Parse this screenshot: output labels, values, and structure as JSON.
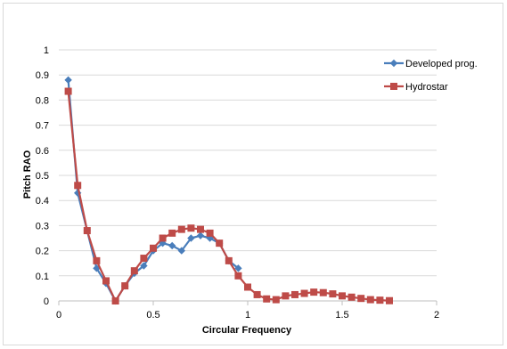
{
  "chart_data": {
    "type": "line",
    "title": "",
    "xlabel": "Circular Frequency",
    "ylabel": "Pitch  RAO",
    "xlim": [
      0,
      2
    ],
    "ylim": [
      0,
      1
    ],
    "xticks": [
      0,
      0.5,
      1,
      1.5,
      2
    ],
    "xtick_labels": [
      "0",
      "0.5",
      "1",
      "1.5",
      "2"
    ],
    "yticks": [
      0,
      0.1,
      0.2,
      0.3,
      0.4,
      0.5,
      0.6,
      0.7,
      0.8,
      0.9,
      1
    ],
    "ytick_labels": [
      "0",
      "0.1",
      "0.2",
      "0.3",
      "0.4",
      "0.5",
      "0.6",
      "0.7",
      "0.8",
      "0.9",
      "1"
    ],
    "grid": true,
    "legend_position": "top-right",
    "series": [
      {
        "name": "Developed prog.",
        "color": "#4a7ebb",
        "marker": "diamond",
        "x": [
          0.05,
          0.1,
          0.15,
          0.2,
          0.25,
          0.3,
          0.35,
          0.4,
          0.45,
          0.5,
          0.55,
          0.6,
          0.65,
          0.7,
          0.75,
          0.8,
          0.85,
          0.9,
          0.95
        ],
        "y": [
          0.88,
          0.43,
          0.28,
          0.13,
          0.07,
          0.0,
          0.06,
          0.11,
          0.14,
          0.2,
          0.23,
          0.22,
          0.2,
          0.25,
          0.26,
          0.25,
          0.23,
          0.16,
          0.13
        ]
      },
      {
        "name": "Hydrostar",
        "color": "#be4b48",
        "marker": "square",
        "x": [
          0.05,
          0.1,
          0.15,
          0.2,
          0.25,
          0.3,
          0.35,
          0.4,
          0.45,
          0.5,
          0.55,
          0.6,
          0.65,
          0.7,
          0.75,
          0.8,
          0.85,
          0.9,
          0.95,
          1.0,
          1.05,
          1.1,
          1.15,
          1.2,
          1.25,
          1.3,
          1.35,
          1.4,
          1.45,
          1.5,
          1.55,
          1.6,
          1.65,
          1.7,
          1.75
        ],
        "y": [
          0.835,
          0.46,
          0.28,
          0.16,
          0.08,
          0.0,
          0.06,
          0.12,
          0.17,
          0.21,
          0.25,
          0.27,
          0.285,
          0.29,
          0.285,
          0.27,
          0.23,
          0.16,
          0.1,
          0.055,
          0.025,
          0.008,
          0.005,
          0.02,
          0.025,
          0.03,
          0.035,
          0.033,
          0.028,
          0.02,
          0.015,
          0.01,
          0.005,
          0.003,
          0.001
        ]
      }
    ]
  }
}
